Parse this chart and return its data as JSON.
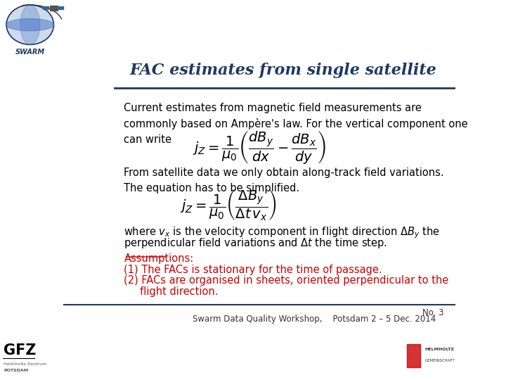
{
  "title": "FAC estimates from single satellite",
  "title_color": "#1F3864",
  "title_fontsize": 16,
  "title_style": "italic",
  "title_font": "serif",
  "bg_color": "#FFFFFF",
  "header_line_color": "#1F3864",
  "footer_line_color": "#1F3864",
  "body_text_color": "#000000",
  "red_text_color": "#CC0000",
  "body_fontsize": 10.5,
  "footer_text": "Swarm Data Quality Workshop,    Potsdam 2 – 5 Dec. 2014",
  "slide_number": "No. 3",
  "para1": "Current estimates from magnetic field measurements are\ncommonly based on Ampère's law. For the vertical component one\ncan write",
  "para2": "From satellite data we only obtain along-track field variations.\nThe equation has to be simplified.",
  "assumptions_label": "Assumptions:",
  "assumption1": "(1) The FACs is stationary for the time of passage.",
  "assumption2_line1": "(2) FACs are organised in sheets, oriented perpendicular to the",
  "assumption2_line2": "     flight direction.",
  "eq1_latex": "$j_Z = \\dfrac{1}{\\mu_0}\\left(\\dfrac{dB_y}{dx} - \\dfrac{dB_x}{dy}\\right)$",
  "eq2_latex": "$j_Z = \\dfrac{1}{\\mu_0}\\left(\\dfrac{\\Delta B_y}{\\Delta t\\, v_x}\\right)$",
  "para3_line1": "where $v_x$ is the velocity component in flight direction $\\Delta B_y$ the",
  "para3_line2": "perpendicular field variations and $\\Delta t$ the time step."
}
